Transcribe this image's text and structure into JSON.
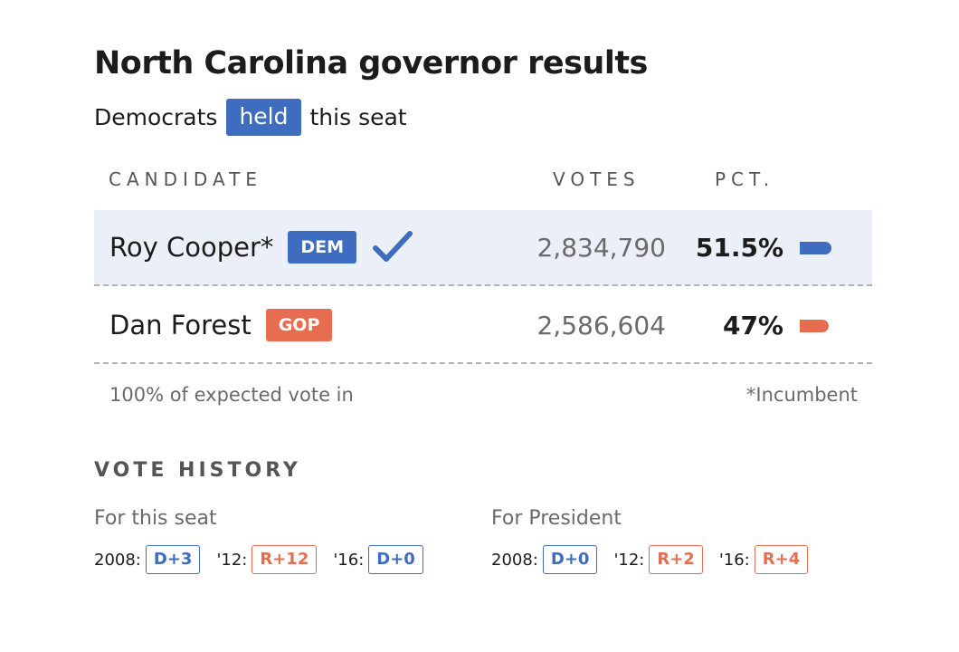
{
  "header": {
    "title": "North Carolina governor results",
    "subtitle_pre": "Democrats",
    "subtitle_badge": "held",
    "subtitle_post": "this seat"
  },
  "columns": {
    "candidate": "CANDIDATE",
    "votes": "VOTES",
    "pct": "PCT."
  },
  "colors": {
    "dem": "#3e6dbf",
    "gop": "#e66d4f",
    "winner_row_bg": "#ebeff8"
  },
  "candidates": [
    {
      "name": "Roy Cooper*",
      "party": "DEM",
      "votes": "2,834,790",
      "pct": "51.5%",
      "pct_value": 51.5,
      "winner_icon": "checkmark-icon"
    },
    {
      "name": "Dan Forest",
      "party": "GOP",
      "votes": "2,586,604",
      "pct": "47%",
      "pct_value": 47
    }
  ],
  "footer": {
    "reporting": "100% of expected vote in",
    "note": "*Incumbent"
  },
  "vote_history": {
    "title": "VOTE HISTORY",
    "seat": {
      "label": "For this seat",
      "items": [
        {
          "year": "2008:",
          "lean": "D+3",
          "party": "d"
        },
        {
          "year": "'12:",
          "lean": "R+12",
          "party": "r"
        },
        {
          "year": "'16:",
          "lean": "D+0",
          "party": "d"
        }
      ]
    },
    "president": {
      "label": "For President",
      "items": [
        {
          "year": "2008:",
          "lean": "D+0",
          "party": "d"
        },
        {
          "year": "'12:",
          "lean": "R+2",
          "party": "r"
        },
        {
          "year": "'16:",
          "lean": "R+4",
          "party": "r"
        }
      ]
    }
  }
}
